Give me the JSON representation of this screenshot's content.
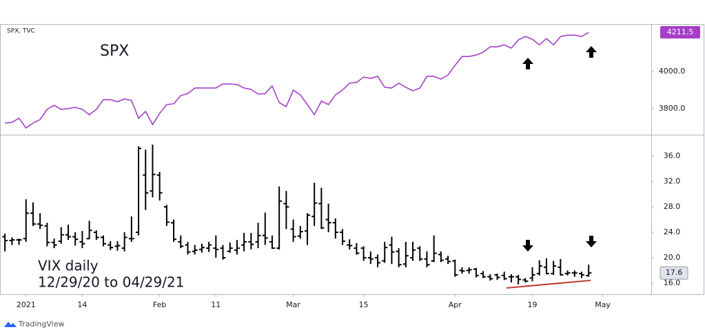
{
  "chart_data": [
    {
      "type": "line",
      "title": "SPX",
      "source": "SPX, TVC",
      "series": [
        {
          "name": "SPX",
          "color": "#a53fc8",
          "values": [
            3722,
            3726,
            3748,
            3696,
            3722,
            3741,
            3796,
            3818,
            3796,
            3800,
            3807,
            3796,
            3767,
            3796,
            3848,
            3848,
            3837,
            3852,
            3844,
            3748,
            3785,
            3714,
            3774,
            3822,
            3826,
            3870,
            3881,
            3911,
            3911,
            3911,
            3911,
            3933,
            3933,
            3930,
            3911,
            3904,
            3878,
            3881,
            3922,
            3833,
            3811,
            3900,
            3874,
            3822,
            3767,
            3841,
            3822,
            3874,
            3900,
            3937,
            3941,
            3970,
            3963,
            3974,
            3915,
            3911,
            3937,
            3915,
            3896,
            3911,
            3974,
            3974,
            3959,
            3981,
            4033,
            4081,
            4081,
            4089,
            4104,
            4133,
            4133,
            4144,
            4126,
            4170,
            4189,
            4174,
            4144,
            4178,
            4144,
            4189,
            4196,
            4196,
            4189,
            4211.5
          ]
        }
      ],
      "xlim": [
        -0.7,
        91.9
      ],
      "ylim": [
        3663,
        4256
      ],
      "yticks": [
        {
          "value": 3800,
          "label": "3800.0"
        },
        {
          "value": 4000,
          "label": "4000.0"
        }
      ],
      "grid": false
    },
    {
      "type": "ohlc",
      "title": "VIX daily",
      "subtitle": "12/29/20 to 04/29/21",
      "color": "#000000",
      "open": [
        23.3,
        22.7,
        22.8,
        23.0,
        27.0,
        25.3,
        25.0,
        22.4,
        22.6,
        23.6,
        23.3,
        22.5,
        23.0,
        24.0,
        23.2,
        22.0,
        21.8,
        21.5,
        23.0,
        24.0,
        33.0,
        30.5,
        33.0,
        28.0,
        25.5,
        22.5,
        22.0,
        21.0,
        21.3,
        21.5,
        21.5,
        21.5,
        21.0,
        21.2,
        22.0,
        22.5,
        22.5,
        23.5,
        22.5,
        21.5,
        28.5,
        24.5,
        23.4,
        24.2,
        26.5,
        28.5,
        26.0,
        25.5,
        24.0,
        22.0,
        21.5,
        21.5,
        20.0,
        20.0,
        19.5,
        22.0,
        21.0,
        19.0,
        20.0,
        21.5,
        19.8,
        19.5,
        20.5,
        19.8,
        19.5,
        18.0,
        18.0,
        18.2,
        17.5,
        17.0,
        17.3,
        17.2,
        17.0,
        17.0,
        16.5,
        16.8,
        17.5,
        18.5,
        17.5,
        18.5,
        17.5,
        17.6,
        17.5,
        17.2
      ],
      "high": [
        23.8,
        23.2,
        23.0,
        29.2,
        28.7,
        27.0,
        25.5,
        23.0,
        24.8,
        25.2,
        24.0,
        24.2,
        25.8,
        24.3,
        23.5,
        22.6,
        22.6,
        24.0,
        26.5,
        37.5,
        37.0,
        37.8,
        33.5,
        28.3,
        26.0,
        23.5,
        22.5,
        22.0,
        22.2,
        22.5,
        23.5,
        22.0,
        22.4,
        22.8,
        23.9,
        23.9,
        25.5,
        27.1,
        23.5,
        31.2,
        30.5,
        26.0,
        25.0,
        27.0,
        31.8,
        31.0,
        28.5,
        26.2,
        24.5,
        22.9,
        22.3,
        21.8,
        21.0,
        20.5,
        22.5,
        23.3,
        21.5,
        22.5,
        22.5,
        21.8,
        21.0,
        23.5,
        21.0,
        20.3,
        19.7,
        18.5,
        18.5,
        18.4,
        17.9,
        17.4,
        17.5,
        17.8,
        17.4,
        17.3,
        16.8,
        18.5,
        19.6,
        19.9,
        19.5,
        19.8,
        18.0,
        18.0,
        17.8,
        18.9
      ],
      "low": [
        21.0,
        22.0,
        22.0,
        22.5,
        25.0,
        24.5,
        21.8,
        21.5,
        22.2,
        22.8,
        21.9,
        21.5,
        22.9,
        22.8,
        21.8,
        21.2,
        21.1,
        21.0,
        22.5,
        23.5,
        27.5,
        29.5,
        29.0,
        25.0,
        22.5,
        21.5,
        20.5,
        20.5,
        20.8,
        20.9,
        20.0,
        19.7,
        20.8,
        20.5,
        21.0,
        21.3,
        21.5,
        22.0,
        21.4,
        21.3,
        24.5,
        22.5,
        23.0,
        22.0,
        25.0,
        24.5,
        24.0,
        23.0,
        22.0,
        21.3,
        20.5,
        19.5,
        19.0,
        18.5,
        19.2,
        19.0,
        18.5,
        18.5,
        19.5,
        19.5,
        18.5,
        19.3,
        19.3,
        19.0,
        17.0,
        17.5,
        17.5,
        16.9,
        16.8,
        16.4,
        16.5,
        16.5,
        16.1,
        15.8,
        16.1,
        16.3,
        17.2,
        17.4,
        17.3,
        17.2,
        17.2,
        17.0,
        16.8,
        17.0
      ],
      "close": [
        22.7,
        22.8,
        22.8,
        27.0,
        25.3,
        25.1,
        22.4,
        22.0,
        23.6,
        23.3,
        22.9,
        22.2,
        24.3,
        23.2,
        22.2,
        21.6,
        21.9,
        23.2,
        23.0,
        37.2,
        30.2,
        33.1,
        30.2,
        25.6,
        22.9,
        21.8,
        20.9,
        21.2,
        21.6,
        22.0,
        21.3,
        20.0,
        21.5,
        21.5,
        22.5,
        22.1,
        23.5,
        23.1,
        21.5,
        28.9,
        28.0,
        23.3,
        24.1,
        26.7,
        28.6,
        24.7,
        25.5,
        24.0,
        22.6,
        21.9,
        20.7,
        20.0,
        19.8,
        19.2,
        21.6,
        20.9,
        18.9,
        20.3,
        21.2,
        19.8,
        18.9,
        20.7,
        19.6,
        19.4,
        17.3,
        17.9,
        18.1,
        17.2,
        17.0,
        16.7,
        16.9,
        16.7,
        17.0,
        16.6,
        16.3,
        17.3,
        18.7,
        17.5,
        18.7,
        17.3,
        17.6,
        17.6,
        17.3,
        17.6
      ],
      "xlim": [
        -0.7,
        91.9
      ],
      "ylim": [
        14.27,
        39.35
      ],
      "yticks": [
        {
          "value": 16,
          "label": "16.0"
        },
        {
          "value": 20,
          "label": "20.0"
        },
        {
          "value": 24,
          "label": "24.0"
        },
        {
          "value": 28,
          "label": "28.0"
        },
        {
          "value": 32,
          "label": "32.0"
        },
        {
          "value": 36,
          "label": "36.0"
        }
      ],
      "xticks": [
        {
          "value": 3,
          "label": "2021"
        },
        {
          "value": 11,
          "label": "14"
        },
        {
          "value": 22,
          "label": "Feb"
        },
        {
          "value": 30,
          "label": "11"
        },
        {
          "value": 41,
          "label": "Mar"
        },
        {
          "value": 51,
          "label": "15"
        },
        {
          "value": 64,
          "label": "Apr"
        },
        {
          "value": 75,
          "label": "19"
        },
        {
          "value": 85,
          "label": "May"
        }
      ],
      "grid": false
    }
  ],
  "footer": {
    "brand": "TradingView"
  }
}
